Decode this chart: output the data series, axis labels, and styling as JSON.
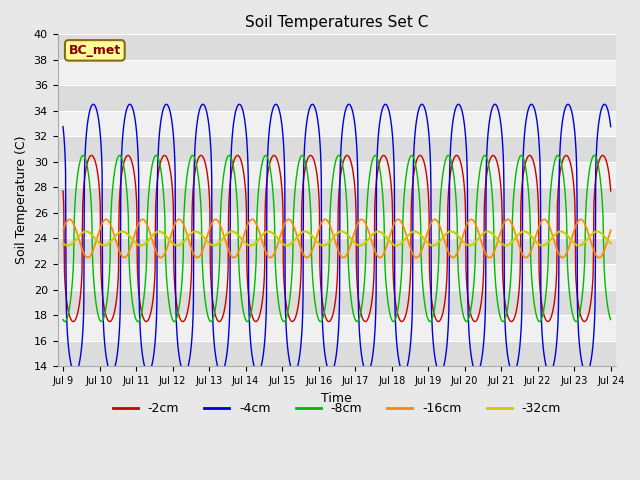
{
  "title": "Soil Temperatures Set C",
  "xlabel": "Time",
  "ylabel": "Soil Temperature (C)",
  "ylim": [
    14,
    40
  ],
  "yticks": [
    14,
    16,
    18,
    20,
    22,
    24,
    26,
    28,
    30,
    32,
    34,
    36,
    38,
    40
  ],
  "start_day": 9,
  "end_day": 24,
  "n_points": 1500,
  "mean_temp": 24.0,
  "series": [
    {
      "label": "-2cm",
      "color": "#cc0000",
      "lw": 1.0,
      "amp": 6.5,
      "phase": 0.05,
      "sharpness": 3.0
    },
    {
      "label": "-4cm",
      "color": "#0000dd",
      "lw": 1.0,
      "amp": 10.5,
      "phase": 0.0,
      "sharpness": 4.0
    },
    {
      "label": "-8cm",
      "color": "#00bb00",
      "lw": 1.0,
      "amp": 6.5,
      "phase": 0.28,
      "sharpness": 2.0
    },
    {
      "label": "-16cm",
      "color": "#ff8800",
      "lw": 1.2,
      "amp": 1.5,
      "phase": 0.65,
      "sharpness": 1.0
    },
    {
      "label": "-32cm",
      "color": "#cccc00",
      "lw": 1.5,
      "amp": 0.55,
      "phase": 1.2,
      "sharpness": 1.0
    }
  ],
  "annotation_text": "BC_met",
  "bg_color": "#e8e8e8",
  "plot_bg": "#f0f0f0",
  "band_light": "#dcdcdc",
  "band_dark": "#f0f0f0",
  "grid_color": "#ffffff",
  "figsize": [
    6.4,
    4.8
  ],
  "dpi": 100
}
